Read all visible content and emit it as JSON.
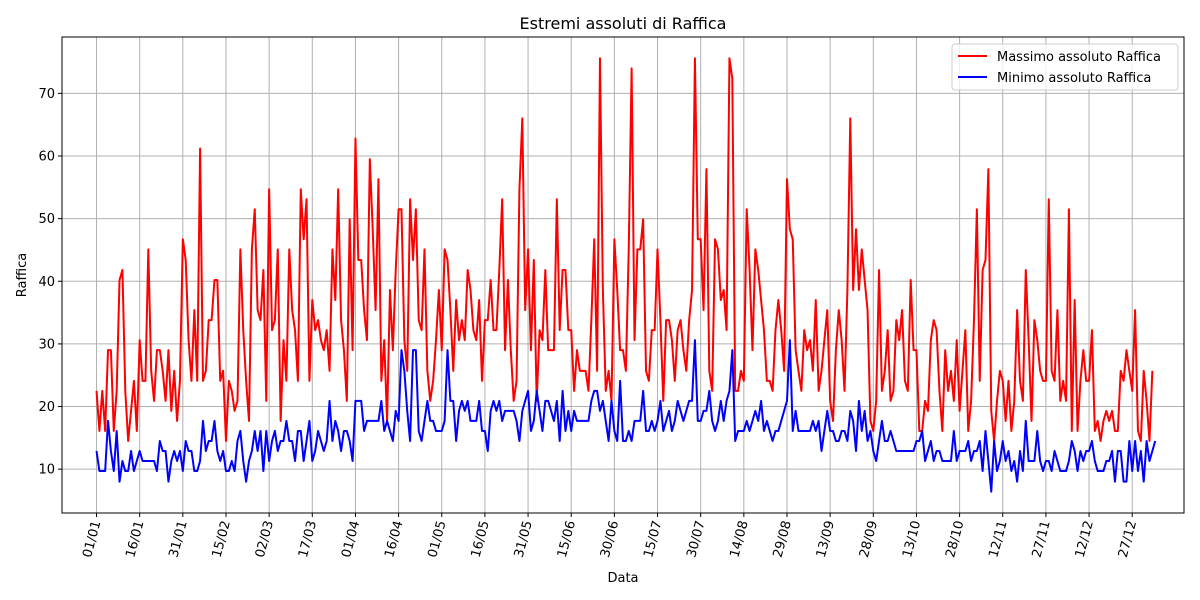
{
  "chart_data": {
    "type": "line",
    "title": "Estremi assoluti di Raffica",
    "xlabel": "Data",
    "ylabel": "Raffica",
    "xlim": [
      -12,
      378
    ],
    "ylim": [
      3,
      79
    ],
    "grid": true,
    "legend_position": "top-right",
    "x_ticks": [
      {
        "day": 0,
        "label": "01/01"
      },
      {
        "day": 15,
        "label": "16/01"
      },
      {
        "day": 30,
        "label": "31/01"
      },
      {
        "day": 45,
        "label": "15/02"
      },
      {
        "day": 60,
        "label": "02/03"
      },
      {
        "day": 75,
        "label": "17/03"
      },
      {
        "day": 90,
        "label": "01/04"
      },
      {
        "day": 105,
        "label": "16/04"
      },
      {
        "day": 120,
        "label": "01/05"
      },
      {
        "day": 135,
        "label": "16/05"
      },
      {
        "day": 150,
        "label": "31/05"
      },
      {
        "day": 165,
        "label": "15/06"
      },
      {
        "day": 180,
        "label": "30/06"
      },
      {
        "day": 195,
        "label": "15/07"
      },
      {
        "day": 210,
        "label": "30/07"
      },
      {
        "day": 225,
        "label": "14/08"
      },
      {
        "day": 240,
        "label": "29/08"
      },
      {
        "day": 255,
        "label": "13/09"
      },
      {
        "day": 270,
        "label": "28/09"
      },
      {
        "day": 285,
        "label": "13/10"
      },
      {
        "day": 300,
        "label": "28/10"
      },
      {
        "day": 315,
        "label": "12/11"
      },
      {
        "day": 330,
        "label": "27/11"
      },
      {
        "day": 345,
        "label": "12/12"
      },
      {
        "day": 360,
        "label": "27/12"
      }
    ],
    "y_ticks": [
      10,
      20,
      30,
      40,
      50,
      60,
      70
    ],
    "series": [
      {
        "name": "Massimo assoluto Raffica",
        "color": "#ff0000",
        "values": [
          22.5,
          16.1,
          22.5,
          16.1,
          29.0,
          29.0,
          16.1,
          22.5,
          40.2,
          41.8,
          22.5,
          14.5,
          19.3,
          24.1,
          16.1,
          30.6,
          24.1,
          24.1,
          45.1,
          25.7,
          20.9,
          29.0,
          29.0,
          25.7,
          20.9,
          29.0,
          19.3,
          25.7,
          17.7,
          24.1,
          46.7,
          43.4,
          30.6,
          24.1,
          35.4,
          24.1,
          61.2,
          24.1,
          25.7,
          33.8,
          33.8,
          40.2,
          40.2,
          24.1,
          25.7,
          14.5,
          24.1,
          22.5,
          19.3,
          20.9,
          45.1,
          32.2,
          24.1,
          17.7,
          45.1,
          51.5,
          35.4,
          33.8,
          41.8,
          20.9,
          54.7,
          32.2,
          33.8,
          45.1,
          17.7,
          30.6,
          24.1,
          45.1,
          35.4,
          32.2,
          24.1,
          54.7,
          46.7,
          53.1,
          24.1,
          37.0,
          32.2,
          33.8,
          30.6,
          29.0,
          32.2,
          25.7,
          45.1,
          37.0,
          54.7,
          33.8,
          29.0,
          20.9,
          49.9,
          29.0,
          62.8,
          43.4,
          43.4,
          35.4,
          30.6,
          59.5,
          48.3,
          35.4,
          56.3,
          24.1,
          30.6,
          17.7,
          38.6,
          29.0,
          41.8,
          51.5,
          51.5,
          30.6,
          25.7,
          53.1,
          43.4,
          51.5,
          33.8,
          32.2,
          45.1,
          25.7,
          20.9,
          24.1,
          30.6,
          38.6,
          29.0,
          45.1,
          43.4,
          35.4,
          25.7,
          37.0,
          30.6,
          33.8,
          30.6,
          41.8,
          38.6,
          32.2,
          30.6,
          37.0,
          24.1,
          33.8,
          33.8,
          40.2,
          32.2,
          32.2,
          41.8,
          53.1,
          29.0,
          40.2,
          29.0,
          20.9,
          24.1,
          54.7,
          66.0,
          35.4,
          45.1,
          29.0,
          43.4,
          20.9,
          32.2,
          30.6,
          41.8,
          29.0,
          29.0,
          29.0,
          53.1,
          32.2,
          41.8,
          41.8,
          32.2,
          32.2,
          22.5,
          29.0,
          25.7,
          25.7,
          25.7,
          22.5,
          33.8,
          46.7,
          25.7,
          75.6,
          38.6,
          22.5,
          25.7,
          20.9,
          46.7,
          38.6,
          29.0,
          29.0,
          25.7,
          45.1,
          74.0,
          30.6,
          45.1,
          45.1,
          49.9,
          25.7,
          24.1,
          32.2,
          32.2,
          45.1,
          33.8,
          20.9,
          33.8,
          33.8,
          30.6,
          24.1,
          32.2,
          33.8,
          29.0,
          25.7,
          33.8,
          38.6,
          75.6,
          46.7,
          46.7,
          35.4,
          57.9,
          25.7,
          22.5,
          46.7,
          45.1,
          37.0,
          38.6,
          32.2,
          75.6,
          72.4,
          22.5,
          22.5,
          25.7,
          24.1,
          51.5,
          41.8,
          29.0,
          45.1,
          41.8,
          37.0,
          32.2,
          24.1,
          24.1,
          22.5,
          32.2,
          37.0,
          32.2,
          25.7,
          56.3,
          48.3,
          46.7,
          29.0,
          25.7,
          22.5,
          32.2,
          29.0,
          30.6,
          25.7,
          37.0,
          22.5,
          25.7,
          30.6,
          35.4,
          20.9,
          17.7,
          29.0,
          35.4,
          30.6,
          22.5,
          38.6,
          66.0,
          38.6,
          48.3,
          38.6,
          45.1,
          40.2,
          35.4,
          17.7,
          16.1,
          20.9,
          41.8,
          22.5,
          25.7,
          32.2,
          20.9,
          22.5,
          33.8,
          30.6,
          35.4,
          24.1,
          22.5,
          40.2,
          29.0,
          29.0,
          16.1,
          16.1,
          20.9,
          19.3,
          30.6,
          33.8,
          32.2,
          22.5,
          16.1,
          29.0,
          22.5,
          25.7,
          20.9,
          30.6,
          19.3,
          25.7,
          32.2,
          16.1,
          20.9,
          33.8,
          51.5,
          24.1,
          41.8,
          43.4,
          57.9,
          19.3,
          14.5,
          20.9,
          25.7,
          24.1,
          17.7,
          24.1,
          16.1,
          20.9,
          35.4,
          24.1,
          20.9,
          41.8,
          30.6,
          17.7,
          33.8,
          30.6,
          25.7,
          24.1,
          24.1,
          53.1,
          25.7,
          24.1,
          35.4,
          20.9,
          24.1,
          20.9,
          51.5,
          16.1,
          37.0,
          16.1,
          24.1,
          29.0,
          24.1,
          24.1,
          32.2,
          16.1,
          17.7,
          14.5,
          17.7,
          19.3,
          17.7,
          19.3,
          16.1,
          16.1,
          25.7,
          24.1,
          29.0,
          25.7,
          22.5,
          35.4,
          16.1,
          14.5,
          25.7,
          20.9,
          14.5,
          25.7
        ]
      },
      {
        "name": "Minimo assoluto Raffica",
        "color": "#0000ff",
        "values": [
          12.9,
          9.7,
          9.7,
          9.7,
          17.7,
          12.9,
          9.7,
          16.1,
          8.0,
          11.3,
          9.7,
          9.7,
          12.9,
          9.7,
          11.3,
          12.9,
          11.3,
          11.3,
          11.3,
          11.3,
          11.3,
          9.7,
          14.5,
          12.9,
          12.9,
          8.0,
          11.3,
          12.9,
          11.3,
          12.9,
          9.7,
          14.5,
          12.9,
          12.9,
          9.7,
          9.7,
          11.3,
          17.7,
          12.9,
          14.5,
          14.5,
          17.7,
          12.9,
          11.3,
          12.9,
          9.7,
          9.7,
          11.3,
          9.7,
          14.5,
          16.1,
          11.3,
          8.0,
          11.3,
          12.9,
          16.1,
          12.9,
          16.1,
          9.7,
          16.1,
          11.3,
          14.5,
          16.1,
          12.9,
          14.5,
          14.5,
          17.7,
          14.5,
          14.5,
          11.3,
          16.1,
          16.1,
          11.3,
          14.5,
          17.7,
          11.3,
          12.9,
          16.1,
          14.5,
          12.9,
          14.5,
          20.9,
          14.5,
          17.7,
          16.1,
          12.9,
          16.1,
          16.1,
          14.5,
          11.3,
          20.9,
          20.9,
          20.9,
          16.1,
          17.7,
          17.7,
          17.7,
          17.7,
          17.7,
          20.9,
          16.1,
          17.7,
          16.1,
          14.5,
          19.3,
          17.7,
          29.0,
          25.7,
          19.3,
          14.5,
          29.0,
          29.0,
          16.1,
          14.5,
          17.7,
          20.9,
          17.7,
          17.7,
          16.1,
          16.1,
          16.1,
          17.7,
          29.0,
          20.9,
          20.9,
          14.5,
          19.3,
          20.9,
          19.3,
          20.9,
          17.7,
          17.7,
          17.7,
          20.9,
          16.1,
          16.1,
          12.9,
          19.3,
          20.9,
          19.3,
          20.9,
          17.7,
          19.3,
          19.3,
          19.3,
          19.3,
          17.7,
          14.5,
          19.3,
          20.9,
          22.5,
          16.1,
          17.7,
          22.5,
          19.3,
          16.1,
          20.9,
          20.9,
          19.3,
          17.7,
          20.9,
          14.5,
          22.5,
          16.1,
          19.3,
          16.1,
          19.3,
          17.7,
          17.7,
          17.7,
          17.7,
          17.7,
          20.9,
          22.5,
          22.5,
          19.3,
          20.9,
          17.7,
          14.5,
          20.9,
          16.1,
          14.5,
          24.1,
          14.5,
          14.5,
          16.1,
          14.5,
          17.7,
          17.7,
          17.7,
          22.5,
          16.1,
          16.1,
          17.7,
          16.1,
          17.7,
          20.9,
          16.1,
          17.7,
          19.3,
          16.1,
          17.7,
          20.9,
          19.3,
          17.7,
          19.3,
          20.9,
          20.9,
          30.6,
          17.7,
          17.7,
          19.3,
          19.3,
          22.5,
          17.7,
          16.1,
          17.7,
          20.9,
          17.7,
          20.9,
          22.5,
          29.0,
          14.5,
          16.1,
          16.1,
          16.1,
          17.7,
          16.1,
          17.7,
          19.3,
          17.7,
          20.9,
          16.1,
          17.7,
          16.1,
          14.5,
          16.1,
          16.1,
          17.7,
          19.3,
          20.9,
          30.6,
          16.1,
          19.3,
          16.1,
          16.1,
          16.1,
          16.1,
          16.1,
          17.7,
          16.1,
          17.7,
          12.9,
          16.1,
          19.3,
          16.1,
          16.1,
          14.5,
          14.5,
          16.1,
          16.1,
          14.5,
          19.3,
          17.7,
          12.9,
          20.9,
          16.1,
          19.3,
          14.5,
          16.1,
          12.9,
          11.3,
          14.5,
          17.7,
          14.5,
          14.5,
          16.1,
          14.5,
          12.9,
          12.9,
          12.9,
          12.9,
          12.9,
          12.9,
          12.9,
          14.5,
          14.5,
          16.1,
          11.3,
          12.9,
          14.5,
          11.3,
          12.9,
          12.9,
          11.3,
          11.3,
          11.3,
          11.3,
          16.1,
          11.3,
          12.9,
          12.9,
          12.9,
          14.5,
          11.3,
          12.9,
          12.9,
          14.5,
          9.7,
          16.1,
          11.3,
          6.4,
          14.5,
          9.7,
          11.3,
          14.5,
          11.3,
          12.9,
          9.7,
          11.3,
          8.0,
          12.9,
          9.7,
          17.7,
          11.3,
          11.3,
          11.3,
          16.1,
          11.3,
          9.7,
          11.3,
          11.3,
          9.7,
          12.9,
          11.3,
          9.7,
          9.7,
          9.7,
          11.3,
          14.5,
          12.9,
          9.7,
          12.9,
          11.3,
          12.9,
          12.9,
          14.5,
          11.3,
          9.7,
          9.7,
          9.7,
          11.3,
          11.3,
          12.9,
          8.0,
          12.9,
          12.9,
          8.0,
          8.0,
          14.5,
          9.7,
          14.5,
          9.7,
          12.9,
          8.0,
          14.5,
          11.3,
          12.9,
          14.5
        ]
      }
    ]
  }
}
